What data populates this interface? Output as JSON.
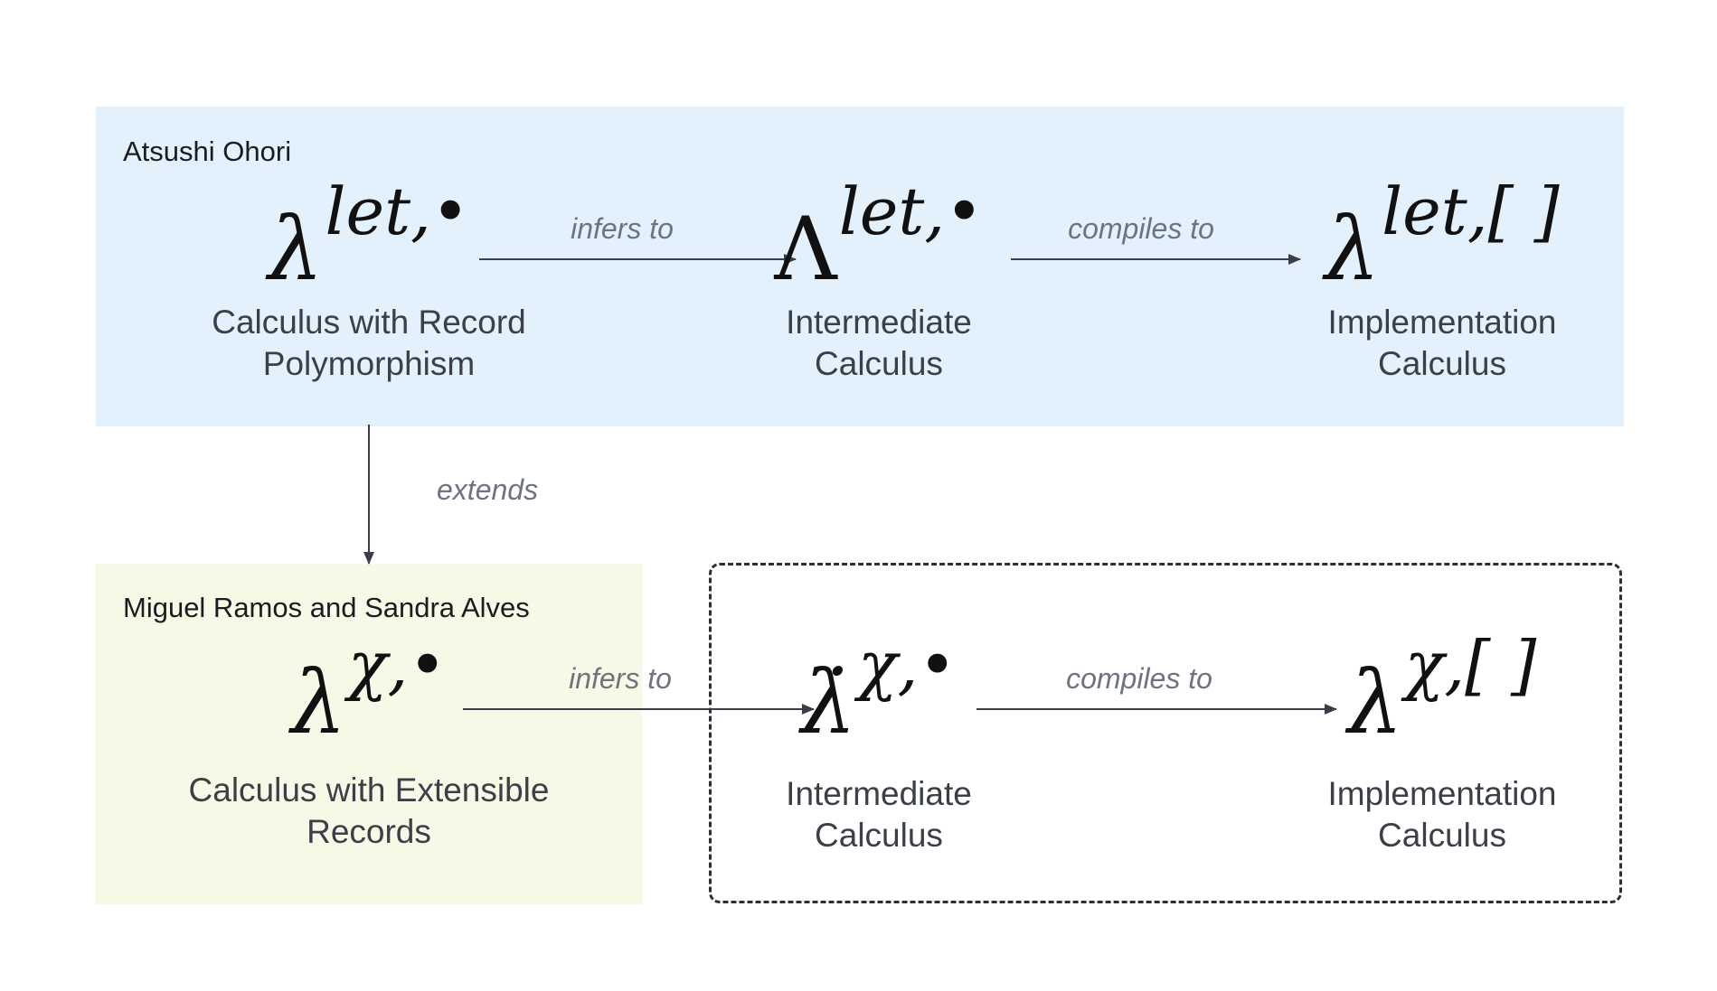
{
  "groups": {
    "ohori": {
      "title": "Atsushi Ohori"
    },
    "ramos": {
      "title": "Miguel Ramos and Sandra Alves"
    }
  },
  "nodes": {
    "record_poly": {
      "symbol_base": "λ",
      "symbol_sup": "let,•",
      "caption_line1": "Calculus with Record",
      "caption_line2": "Polymorphism"
    },
    "ohori_intermediate": {
      "symbol_base": "Λ",
      "symbol_sup": "let,•",
      "caption_line1": "Intermediate",
      "caption_line2": "Calculus"
    },
    "ohori_implementation": {
      "symbol_base": "λ",
      "symbol_sup": "let,[ ]",
      "caption_line1": "Implementation",
      "caption_line2": "Calculus"
    },
    "extensible": {
      "symbol_base": "λ",
      "symbol_sup": "χ,•",
      "caption_line1": "Calculus with Extensible",
      "caption_line2": "Records"
    },
    "ramos_intermediate": {
      "symbol_base": "λ̇",
      "symbol_sup": "χ,•",
      "caption_line1": "Intermediate",
      "caption_line2": "Calculus"
    },
    "ramos_implementation": {
      "symbol_base": "λ",
      "symbol_sup": "χ,[ ]",
      "caption_line1": "Implementation",
      "caption_line2": "Calculus"
    }
  },
  "edges": {
    "ohori_infers": {
      "label": "infers to"
    },
    "ohori_compiles": {
      "label": "compiles to"
    },
    "extends": {
      "label": "extends"
    },
    "ramos_infers": {
      "label": "infers to"
    },
    "ramos_compiles": {
      "label": "compiles to"
    }
  },
  "colors": {
    "ohori_group_bg": "#e3f1fc",
    "ramos_group_bg": "#f7f9e6",
    "arrow": "#3a3f47",
    "edge_label": "#6e7380"
  }
}
